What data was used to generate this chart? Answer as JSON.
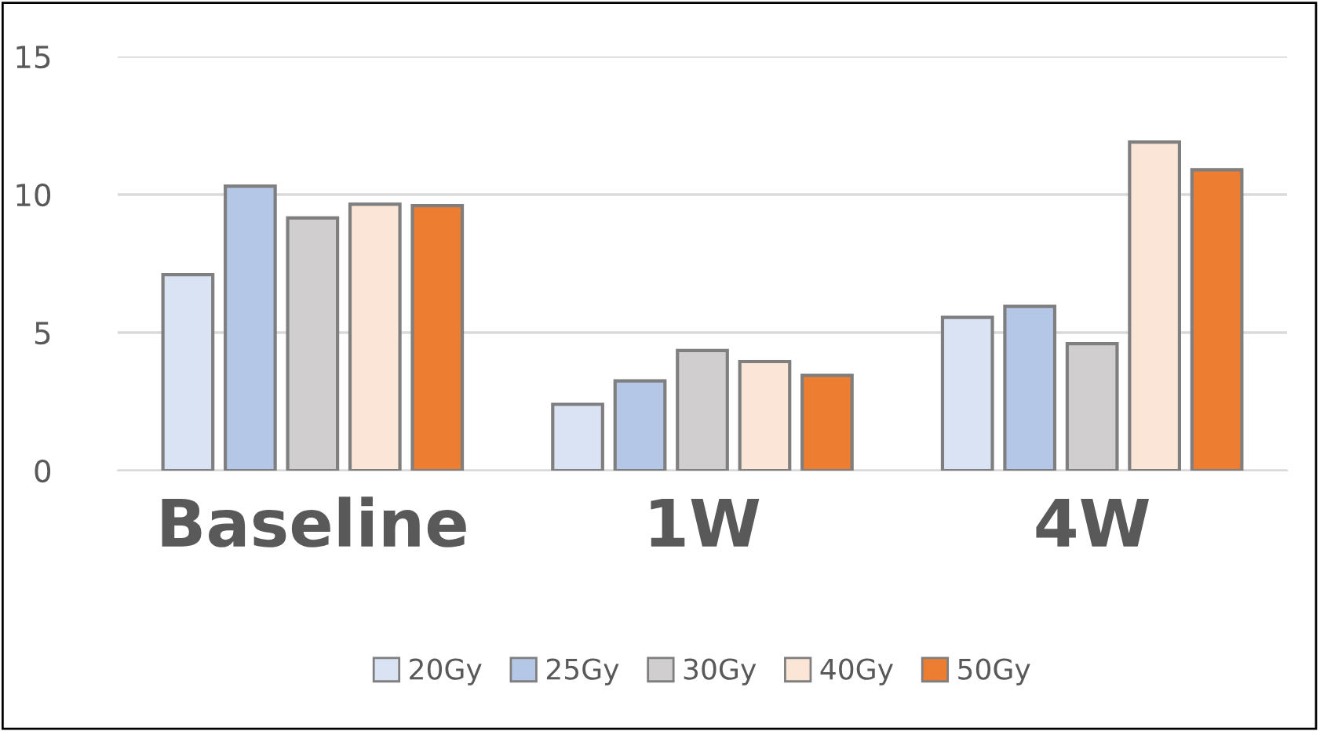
{
  "chart_data": {
    "type": "bar",
    "categories": [
      "Baseline",
      "1W",
      "4W"
    ],
    "series": [
      {
        "name": "20Gy",
        "color": "#dae3f3",
        "values": [
          7.1,
          2.4,
          5.55
        ]
      },
      {
        "name": "25Gy",
        "color": "#b4c7e7",
        "values": [
          10.3,
          3.25,
          5.95
        ]
      },
      {
        "name": "30Gy",
        "color": "#d0cece",
        "values": [
          9.15,
          4.35,
          4.6
        ]
      },
      {
        "name": "40Gy",
        "color": "#fbe5d6",
        "values": [
          9.65,
          3.95,
          11.9
        ]
      },
      {
        "name": "50Gy",
        "color": "#ed7d31",
        "values": [
          9.6,
          3.45,
          10.9
        ]
      }
    ],
    "ylim": [
      0,
      15
    ],
    "yticks": [
      0,
      5,
      10,
      15
    ],
    "grid": "y",
    "legend": "bottom"
  }
}
